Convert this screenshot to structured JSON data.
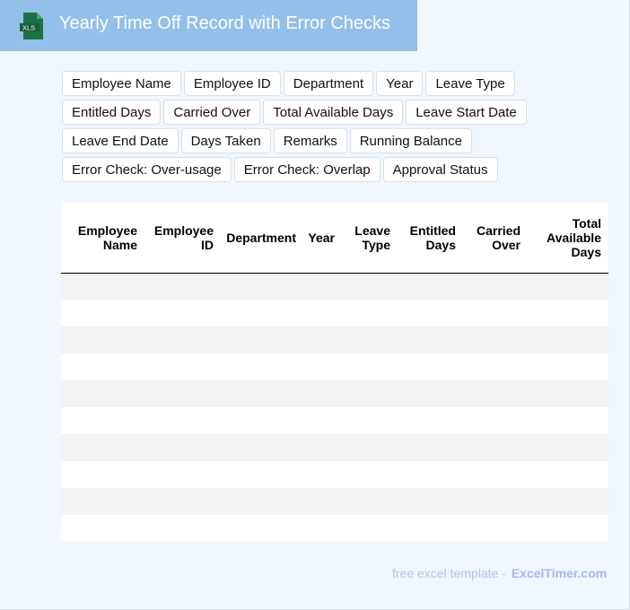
{
  "header": {
    "title": "Yearly Time Off Record with Error Checks",
    "logo_text": "XLS",
    "color": "#92c0ea"
  },
  "fields": [
    "Employee Name",
    "Employee ID",
    "Department",
    "Year",
    "Leave Type",
    "Entitled Days",
    "Carried Over",
    "Total Available Days",
    "Leave Start Date",
    "Leave End Date",
    "Days Taken",
    "Remarks",
    "Running Balance",
    "Error Check: Over-usage",
    "Error Check: Overlap",
    "Approval Status"
  ],
  "table": {
    "columns": [
      [
        "Employee",
        "Name"
      ],
      [
        "Employee",
        "ID"
      ],
      [
        "Department"
      ],
      [
        "Year"
      ],
      [
        "Leave",
        "Type"
      ],
      [
        "Entitled",
        "Days"
      ],
      [
        "Carried",
        "Over"
      ],
      [
        "Total",
        "Available",
        "Days"
      ]
    ],
    "row_count": 10
  },
  "footer": {
    "text": "free excel template -",
    "brand": "ExcelTimer.com"
  }
}
